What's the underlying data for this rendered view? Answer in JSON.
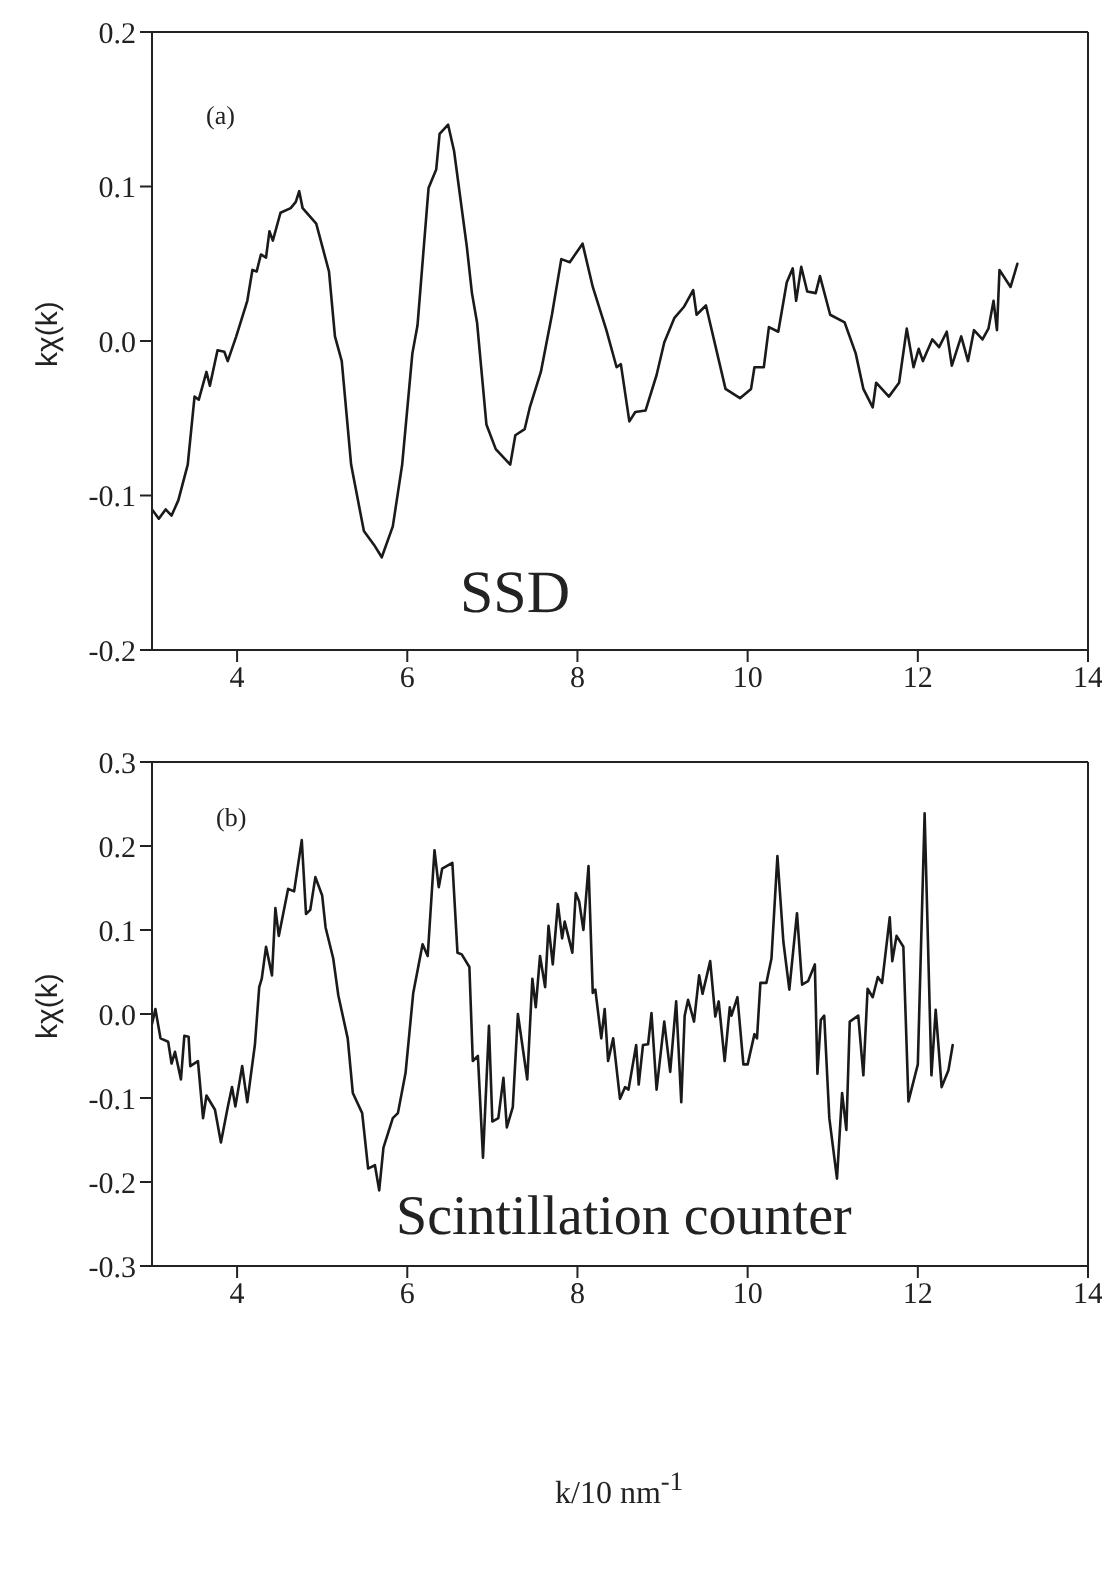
{
  "chart_data": [
    {
      "type": "line",
      "ylabel": "kχ(k)",
      "annotations": [
        "(a)",
        "SSD"
      ],
      "xlim": [
        3,
        14
      ],
      "xticks": [
        4,
        6,
        8,
        10,
        12,
        14
      ],
      "ylim": [
        -0.2,
        0.2
      ],
      "yticks": [
        -0.2,
        -0.1,
        {
          "value": 0,
          "label": "0.0"
        },
        0.1,
        0.2
      ],
      "marker": "none",
      "line_style": "solid",
      "series": [
        {
          "color": "#1a1a1a",
          "x": [
            3.0,
            3.08,
            3.16,
            3.23,
            3.31,
            3.42,
            3.5,
            3.55,
            3.64,
            3.68,
            3.77,
            3.85,
            3.89,
            3.99,
            4.12,
            4.18,
            4.23,
            4.28,
            4.34,
            4.38,
            4.42,
            4.51,
            4.63,
            4.69,
            4.73,
            4.77,
            4.93,
            5.08,
            5.15,
            5.23,
            5.34,
            5.49,
            5.61,
            5.7,
            5.83,
            5.94,
            6.06,
            6.12,
            6.25,
            6.34,
            6.38,
            6.48,
            6.55,
            6.7,
            6.76,
            6.82,
            6.93,
            7.04,
            7.21,
            7.27,
            7.38,
            7.44,
            7.57,
            7.7,
            7.81,
            7.91,
            8.06,
            8.18,
            8.34,
            8.46,
            8.51,
            8.61,
            8.68,
            8.8,
            8.93,
            9.02,
            9.14,
            9.25,
            9.36,
            9.4,
            9.51,
            9.74,
            9.91,
            10.04,
            10.08,
            10.19,
            10.25,
            10.36,
            10.46,
            10.53,
            10.57,
            10.63,
            10.7,
            10.8,
            10.85,
            10.97,
            11.14,
            11.27,
            11.36,
            11.47,
            11.51,
            11.66,
            11.78,
            11.87,
            11.95,
            12.01,
            12.06,
            12.17,
            12.25,
            12.34,
            12.4,
            12.51,
            12.59,
            12.66,
            12.76,
            12.83,
            12.89,
            12.93,
            12.96,
            13.09,
            13.17
          ],
          "values": [
            -0.109,
            -0.115,
            -0.109,
            -0.113,
            -0.103,
            -0.08,
            -0.036,
            -0.038,
            -0.02,
            -0.029,
            -0.006,
            -0.007,
            -0.013,
            0.003,
            0.026,
            0.046,
            0.045,
            0.056,
            0.054,
            0.071,
            0.065,
            0.083,
            0.086,
            0.09,
            0.097,
            0.086,
            0.076,
            0.045,
            0.003,
            -0.013,
            -0.08,
            -0.123,
            -0.132,
            -0.14,
            -0.12,
            -0.08,
            -0.008,
            0.01,
            0.099,
            0.111,
            0.134,
            0.14,
            0.123,
            0.061,
            0.031,
            0.012,
            -0.054,
            -0.07,
            -0.08,
            -0.061,
            -0.057,
            -0.043,
            -0.02,
            0.017,
            0.053,
            0.051,
            0.063,
            0.035,
            0.007,
            -0.017,
            -0.015,
            -0.052,
            -0.046,
            -0.045,
            -0.022,
            -0.001,
            0.015,
            0.022,
            0.033,
            0.017,
            0.023,
            -0.031,
            -0.037,
            -0.031,
            -0.017,
            -0.017,
            0.009,
            0.006,
            0.038,
            0.047,
            0.026,
            0.048,
            0.032,
            0.031,
            0.042,
            0.017,
            0.012,
            -0.008,
            -0.031,
            -0.043,
            -0.027,
            -0.036,
            -0.027,
            0.008,
            -0.017,
            -0.005,
            -0.013,
            0.001,
            -0.004,
            0.006,
            -0.016,
            0.003,
            -0.013,
            0.007,
            0.001,
            0.008,
            0.026,
            0.007,
            0.046,
            0.035,
            0.05
          ]
        }
      ]
    },
    {
      "type": "line",
      "ylabel": "kχ(k)",
      "xlabel": "k/10 nm$^{-1}$",
      "annotations": [
        "(b)",
        "Scintillation counter"
      ],
      "xlim": [
        3,
        14
      ],
      "xticks": [
        4,
        6,
        8,
        10,
        12,
        14
      ],
      "ylim": [
        -0.3,
        0.3
      ],
      "yticks": [
        -0.3,
        -0.2,
        -0.1,
        {
          "value": 0,
          "label": "0.0"
        },
        0.1,
        0.2,
        0.3
      ],
      "marker": "none",
      "line_style": "solid",
      "series": [
        {
          "color": "#1a1a1a",
          "x": [
            3.0,
            3.04,
            3.1,
            3.19,
            3.23,
            3.27,
            3.34,
            3.38,
            3.43,
            3.45,
            3.54,
            3.6,
            3.64,
            3.74,
            3.81,
            3.89,
            3.94,
            3.98,
            4.06,
            4.12,
            4.21,
            4.26,
            4.29,
            4.34,
            4.41,
            4.45,
            4.49,
            4.6,
            4.67,
            4.76,
            4.81,
            4.86,
            4.92,
            5.0,
            5.04,
            5.13,
            5.19,
            5.3,
            5.36,
            5.47,
            5.54,
            5.62,
            5.67,
            5.72,
            5.83,
            5.89,
            5.98,
            6.07,
            6.18,
            6.24,
            6.32,
            6.37,
            6.41,
            6.53,
            6.59,
            6.64,
            6.73,
            6.77,
            6.83,
            6.89,
            6.96,
            7.0,
            7.07,
            7.13,
            7.17,
            7.24,
            7.3,
            7.41,
            7.47,
            7.51,
            7.56,
            7.62,
            7.66,
            7.71,
            7.77,
            7.82,
            7.85,
            7.94,
            7.98,
            8.02,
            8.07,
            8.13,
            8.18,
            8.21,
            8.28,
            8.32,
            8.36,
            8.42,
            8.5,
            8.56,
            8.6,
            8.69,
            8.72,
            8.77,
            8.83,
            8.87,
            8.93,
            9.02,
            9.09,
            9.16,
            9.22,
            9.26,
            9.3,
            9.37,
            9.43,
            9.47,
            9.56,
            9.62,
            9.66,
            9.73,
            9.79,
            9.81,
            9.88,
            9.95,
            10.0,
            10.08,
            10.11,
            10.15,
            10.22,
            10.28,
            10.35,
            10.42,
            10.49,
            10.58,
            10.64,
            10.71,
            10.79,
            10.82,
            10.86,
            10.9,
            10.96,
            11.05,
            11.11,
            11.16,
            11.2,
            11.3,
            11.36,
            11.41,
            11.47,
            11.53,
            11.58,
            11.67,
            11.7,
            11.75,
            11.83,
            11.89,
            12.0,
            12.08,
            12.16,
            12.21,
            12.28,
            12.36,
            12.41
          ],
          "values": [
            -0.012,
            0.006,
            -0.029,
            -0.033,
            -0.059,
            -0.045,
            -0.078,
            -0.026,
            -0.027,
            -0.062,
            -0.056,
            -0.124,
            -0.097,
            -0.114,
            -0.153,
            -0.111,
            -0.087,
            -0.11,
            -0.062,
            -0.105,
            -0.036,
            0.032,
            0.042,
            0.08,
            0.046,
            0.126,
            0.093,
            0.149,
            0.146,
            0.207,
            0.119,
            0.124,
            0.163,
            0.141,
            0.103,
            0.066,
            0.022,
            -0.029,
            -0.094,
            -0.118,
            -0.184,
            -0.18,
            -0.21,
            -0.159,
            -0.124,
            -0.118,
            -0.07,
            0.025,
            0.083,
            0.069,
            0.195,
            0.151,
            0.173,
            0.18,
            0.073,
            0.071,
            0.056,
            -0.056,
            -0.05,
            -0.171,
            -0.014,
            -0.128,
            -0.124,
            -0.076,
            -0.135,
            -0.111,
            0.0,
            -0.078,
            0.042,
            0.008,
            0.069,
            0.032,
            0.105,
            0.059,
            0.131,
            0.09,
            0.11,
            0.073,
            0.144,
            0.134,
            0.1,
            0.176,
            0.025,
            0.029,
            -0.029,
            0.006,
            -0.056,
            -0.029,
            -0.101,
            -0.087,
            -0.09,
            -0.037,
            -0.084,
            -0.037,
            -0.036,
            0.001,
            -0.09,
            -0.009,
            -0.069,
            0.015,
            -0.105,
            -0.002,
            0.017,
            -0.009,
            0.046,
            0.024,
            0.063,
            -0.003,
            0.015,
            -0.056,
            0.008,
            -0.002,
            0.02,
            -0.06,
            -0.06,
            -0.024,
            -0.029,
            0.037,
            0.037,
            0.066,
            0.188,
            0.086,
            0.029,
            0.12,
            0.035,
            0.039,
            0.059,
            -0.071,
            -0.007,
            -0.002,
            -0.124,
            -0.196,
            -0.094,
            -0.138,
            -0.009,
            -0.002,
            -0.073,
            0.03,
            0.02,
            0.044,
            0.037,
            0.115,
            0.063,
            0.093,
            0.08,
            -0.104,
            -0.06,
            0.239,
            -0.073,
            0.005,
            -0.087,
            -0.067,
            -0.037
          ]
        }
      ]
    }
  ]
}
